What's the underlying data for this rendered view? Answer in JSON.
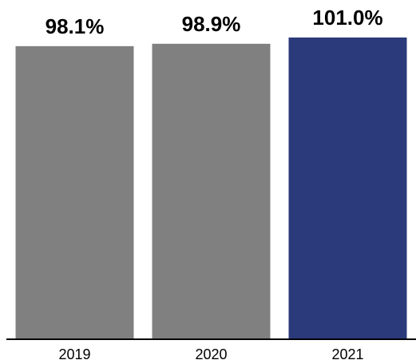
{
  "chart_data": {
    "type": "bar",
    "categories": [
      "2019",
      "2020",
      "2021"
    ],
    "values": [
      98.1,
      98.9,
      101.0
    ],
    "data_labels": [
      "98.1%",
      "98.9%",
      "101.0%"
    ],
    "unit": "%",
    "ylim": [
      0,
      101.0
    ],
    "grid": false,
    "legend": "none",
    "colors": {
      "default_bar": "#808080",
      "highlight_bar": "#2b3a7a",
      "axis": "#000000"
    },
    "highlight_index": 2
  }
}
